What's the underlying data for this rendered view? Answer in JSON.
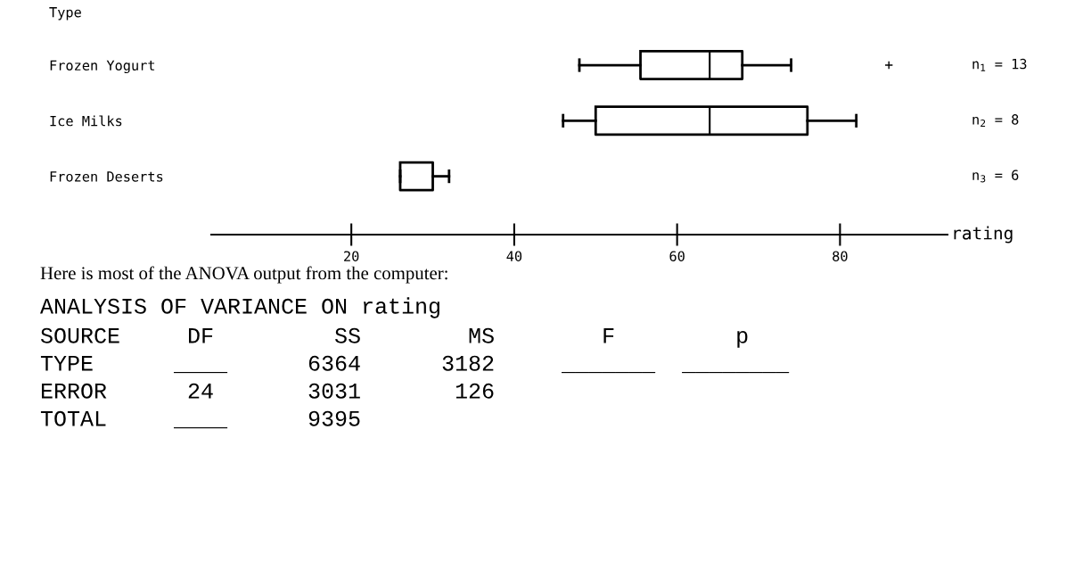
{
  "chart_data": {
    "type": "box",
    "categories": [
      "Frozen Yogurt",
      "Ice Milks",
      "Frozen Deserts"
    ],
    "ylabel": "Type",
    "xlabel": "rating",
    "boxes": [
      {
        "low": 48,
        "q1": 55.5,
        "median": 64,
        "q3": 68,
        "high": 74,
        "outliers": [
          86
        ]
      },
      {
        "low": 46,
        "q1": 50,
        "median": 64,
        "q3": 76,
        "high": 82
      },
      {
        "low": 26,
        "q1": 26,
        "median": 26,
        "q3": 30,
        "high": 32
      }
    ],
    "xlim": [
      2.8,
      93.2
    ],
    "xticks": [
      20,
      40,
      60,
      80
    ],
    "y2_categories": [
      "n$_{1}$ = 13",
      "n$_{2}$ = 8",
      "n$_{3}$ = 6"
    ],
    "orientation": "horizontal",
    "annotations": [
      "Here is most of the ANOVA output from the computer:",
      "ANALYSIS OF VARIANCE ON rating",
      "SOURCE     DF         SS        MS        F         p",
      "TYPE      ____      6364      3182     _______  ________",
      "ERROR      24       3031       126",
      "TOTAL     ____      9395"
    ],
    "grid": false,
    "legend": false
  }
}
